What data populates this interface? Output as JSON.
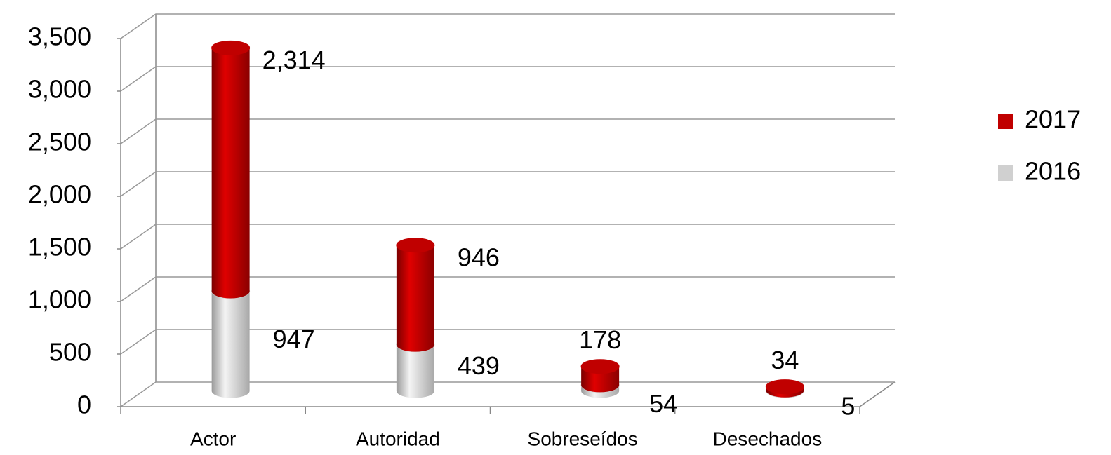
{
  "chart_data": {
    "type": "bar3d_stacked",
    "categories": [
      "Actor",
      "Autoridad",
      "Sobreseídos",
      "Desechados"
    ],
    "series": [
      {
        "name": "2016",
        "color": "#d0d0d0",
        "values": [
          947,
          439,
          54,
          5
        ]
      },
      {
        "name": "2017",
        "color": "#c00000",
        "values": [
          2314,
          946,
          178,
          34
        ],
        "value_labels": [
          "2,314",
          "946",
          "178",
          "34"
        ]
      }
    ],
    "ylim": [
      0,
      3500
    ],
    "yticks": [
      0,
      500,
      {
        "value": 1000,
        "label": "1,000"
      },
      {
        "value": 1500,
        "label": "1,500"
      },
      {
        "value": 2000,
        "label": "2,000"
      },
      {
        "value": 2500,
        "label": "2,500"
      },
      {
        "value": 3000,
        "label": "3,000"
      },
      {
        "value": 3500,
        "label": "3,500"
      }
    ],
    "grid": true,
    "legend": "right"
  }
}
